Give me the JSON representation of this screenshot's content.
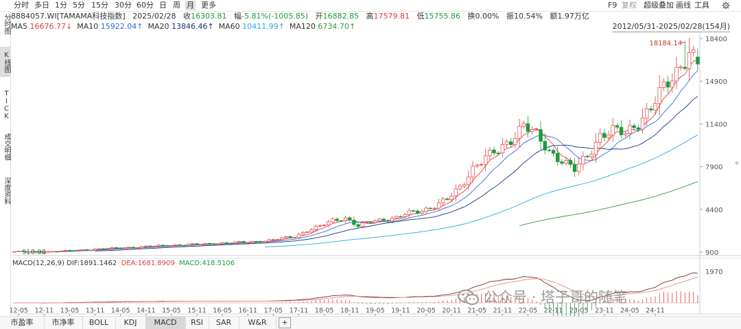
{
  "topbar": {
    "periods": [
      {
        "label": "分时",
        "active": false
      },
      {
        "label": "多日",
        "active": false
      },
      {
        "label": "1分",
        "active": false
      },
      {
        "label": "5分",
        "active": false
      },
      {
        "label": "15分",
        "active": false
      },
      {
        "label": "30分",
        "active": false
      },
      {
        "label": "60分",
        "active": false
      },
      {
        "label": "日",
        "active": false
      },
      {
        "label": "周",
        "active": false
      },
      {
        "label": "月",
        "active": true
      },
      {
        "label": "更多",
        "active": false
      }
    ],
    "tools": [
      "F9",
      "复权",
      "超级叠加",
      "画线",
      "工具"
    ],
    "settings_icon": "gear-icon"
  },
  "info": {
    "code_name": "8884057.WI[TAMAMA科技指数]",
    "date": "2025/02/28",
    "close_label": "收",
    "close": "16303.81",
    "change_label": "幅",
    "change": "-5.81%(-1005.85)",
    "open_label": "开",
    "open": "16882.85",
    "high_label": "高",
    "high": "17579.81",
    "low_label": "低",
    "low": "15755.86",
    "turnover_label": "换",
    "turnover": "0.00%",
    "amplitude_label": "振",
    "amplitude": "10.54%",
    "amount_label": "额",
    "amount": "1.97万亿"
  },
  "ma": [
    {
      "label": "MA5",
      "value": "16676.77↓",
      "color": "#e23b3b"
    },
    {
      "label": "MA10",
      "value": "15922.04↑",
      "color": "#2a6fdb"
    },
    {
      "label": "MA20",
      "value": "13846.46↑",
      "color": "#1b2e7a"
    },
    {
      "label": "MA60",
      "value": "10411.99↑",
      "color": "#28a8de"
    },
    {
      "label": "MA120",
      "value": "6734.70↑",
      "color": "#2f9c3a"
    }
  ],
  "range": "2012/05/31-2025/02/28(154月)",
  "leftnav": [
    {
      "label": "分时图",
      "active": false
    },
    {
      "label": "K线图",
      "active": true
    },
    {
      "label": "TICK",
      "active": false
    },
    {
      "label": "成交明细",
      "active": false
    },
    {
      "label": "深度资料",
      "active": false
    }
  ],
  "colors": {
    "up": "#e23b3b",
    "down": "#1e9a3c",
    "dif": "#7a2b2b",
    "dea": "#e88a8a",
    "hist": "#e23b3b"
  },
  "chart_data": [
    {
      "type": "candlestick",
      "ylim": [
        900,
        18400
      ],
      "y_ticks": [
        18400,
        14900,
        11400,
        7900,
        4400,
        900
      ],
      "x_labels": [
        "12-05",
        "12-11",
        "13-05",
        "13-11",
        "14-05",
        "14-11",
        "15-05",
        "15-11",
        "16-05",
        "16-11",
        "17-05",
        "17-11",
        "18-05",
        "18-11",
        "19-05",
        "19-11",
        "20-05",
        "20-11",
        "21-05",
        "21-11",
        "22-05",
        "22-11",
        "23-05",
        "23-11",
        "24-05",
        "24-11"
      ],
      "annotations": [
        {
          "text": "18184.14",
          "value": 18184.14
        },
        {
          "text": "910.08",
          "value": 910.08
        }
      ],
      "anchors": [
        [
          0,
          940
        ],
        [
          6,
          910
        ],
        [
          12,
          1000
        ],
        [
          18,
          1120
        ],
        [
          24,
          1230
        ],
        [
          30,
          1330
        ],
        [
          36,
          1450
        ],
        [
          42,
          1520
        ],
        [
          48,
          1620
        ],
        [
          54,
          1700
        ],
        [
          60,
          1850
        ],
        [
          66,
          2200
        ],
        [
          69,
          2650
        ],
        [
          72,
          3000
        ],
        [
          75,
          3500
        ],
        [
          78,
          3700
        ],
        [
          81,
          3000
        ],
        [
          84,
          3400
        ],
        [
          87,
          3600
        ],
        [
          90,
          3700
        ],
        [
          93,
          4100
        ],
        [
          96,
          4300
        ],
        [
          99,
          4700
        ],
        [
          102,
          5200
        ],
        [
          105,
          6200
        ],
        [
          108,
          7800
        ],
        [
          111,
          8600
        ],
        [
          114,
          9200
        ],
        [
          117,
          10200
        ],
        [
          120,
          11300
        ],
        [
          123,
          10400
        ],
        [
          126,
          9200
        ],
        [
          129,
          8400
        ],
        [
          132,
          7600
        ],
        [
          135,
          8800
        ],
        [
          138,
          10500
        ],
        [
          141,
          10800
        ],
        [
          144,
          10600
        ],
        [
          147,
          11600
        ],
        [
          150,
          12700
        ],
        [
          153,
          14300
        ],
        [
          155,
          15200
        ],
        [
          157,
          16300
        ],
        [
          159,
          17300
        ],
        [
          161,
          16303
        ]
      ],
      "last_candle": {
        "open": 16882.85,
        "high": 17579.81,
        "low": 15755.86,
        "close": 16303.81
      }
    },
    {
      "type": "macd",
      "params": "MACD(12,26,9)",
      "dif_label": "DIF:",
      "dif": "1891.1462",
      "dea_label": "DEA:",
      "dea": "1681.8909",
      "macd_label": "MACD:",
      "macd": "418.5106",
      "ylim": [
        -600,
        2100
      ],
      "y_ticks": [
        1970
      ]
    }
  ],
  "bottom_tabs": [
    {
      "label": "市盈率",
      "active": false
    },
    {
      "label": "市净率",
      "active": false
    },
    {
      "label": "BOLL",
      "active": false
    },
    {
      "label": "KDJ",
      "active": false
    },
    {
      "label": "MACD",
      "active": true
    },
    {
      "label": "RSI",
      "active": false
    },
    {
      "label": "SAR",
      "active": false
    },
    {
      "label": "W&R",
      "active": false
    },
    {
      "label": "+",
      "active": false
    }
  ],
  "watermark": "公众号 · 塔子哥的随笔"
}
